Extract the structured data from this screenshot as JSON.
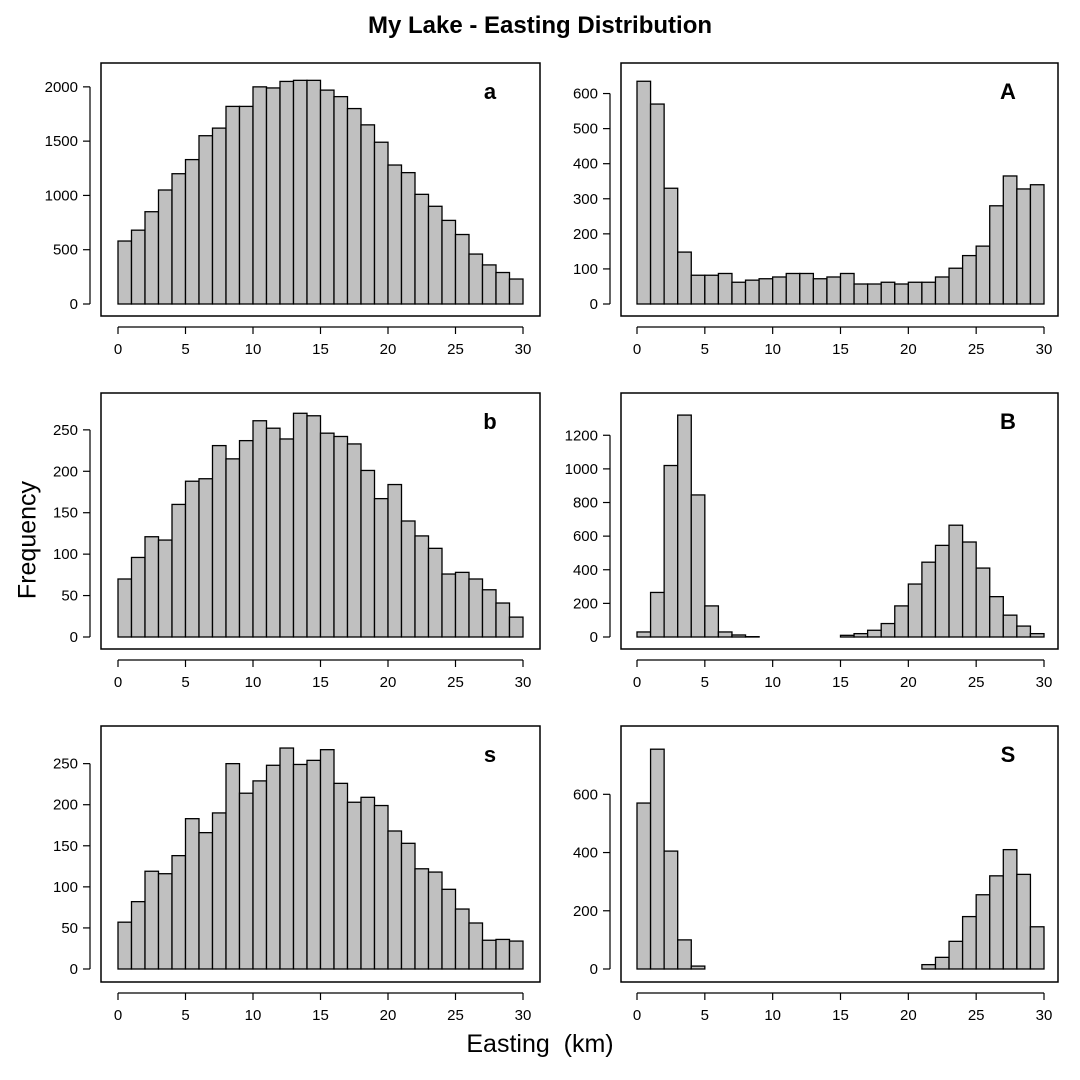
{
  "title": "My Lake - Easting Distribution",
  "xlabel": "Easting  (km)",
  "ylabel": "Frequency",
  "colors": {
    "bar_fill": "#c0c0c0",
    "bar_stroke": "#000000",
    "frame": "#000000"
  },
  "chart_data": [
    {
      "type": "bar",
      "panel_label": "a",
      "x_edges_start": 0,
      "bin_width": 1,
      "xlim": [
        0,
        30
      ],
      "xticks": [
        0,
        5,
        10,
        15,
        20,
        25,
        30
      ],
      "ylim": [
        0,
        2100
      ],
      "yticks": [
        0,
        500,
        1000,
        1500,
        2000
      ],
      "values": [
        580,
        680,
        850,
        1050,
        1200,
        1330,
        1550,
        1620,
        1820,
        1820,
        2000,
        1990,
        2050,
        2060,
        2060,
        1970,
        1910,
        1800,
        1650,
        1490,
        1280,
        1210,
        1010,
        900,
        770,
        640,
        460,
        360,
        290,
        230
      ]
    },
    {
      "type": "bar",
      "panel_label": "A",
      "x_edges_start": 0,
      "bin_width": 1,
      "xlim": [
        0,
        30
      ],
      "xticks": [
        0,
        5,
        10,
        15,
        20,
        25,
        30
      ],
      "ylim": [
        0,
        650
      ],
      "yticks": [
        0,
        100,
        200,
        300,
        400,
        500,
        600
      ],
      "values": [
        635,
        570,
        330,
        148,
        82,
        82,
        87,
        62,
        68,
        72,
        77,
        87,
        87,
        72,
        77,
        87,
        57,
        57,
        62,
        57,
        62,
        62,
        77,
        102,
        138,
        165,
        280,
        365,
        328,
        340
      ]
    },
    {
      "type": "bar",
      "panel_label": "b",
      "x_edges_start": 0,
      "bin_width": 1,
      "xlim": [
        0,
        30
      ],
      "xticks": [
        0,
        5,
        10,
        15,
        20,
        25,
        30
      ],
      "ylim": [
        0,
        280
      ],
      "yticks": [
        0,
        50,
        100,
        150,
        200,
        250
      ],
      "values": [
        70,
        96,
        121,
        117,
        160,
        188,
        191,
        231,
        215,
        237,
        261,
        252,
        239,
        270,
        267,
        246,
        242,
        233,
        201,
        167,
        184,
        140,
        122,
        107,
        76,
        78,
        70,
        57,
        41,
        24
      ]
    },
    {
      "type": "bar",
      "panel_label": "B",
      "x_edges_start": 0,
      "bin_width": 1,
      "xlim": [
        0,
        30
      ],
      "xticks": [
        0,
        5,
        10,
        15,
        20,
        25,
        30
      ],
      "ylim": [
        0,
        1380
      ],
      "yticks": [
        0,
        200,
        400,
        600,
        800,
        1000,
        1200
      ],
      "values": [
        30,
        265,
        1020,
        1320,
        845,
        185,
        30,
        12,
        2,
        0,
        0,
        0,
        0,
        0,
        0,
        10,
        20,
        40,
        80,
        185,
        315,
        445,
        545,
        665,
        565,
        410,
        240,
        130,
        65,
        20
      ]
    },
    {
      "type": "bar",
      "panel_label": "s",
      "x_edges_start": 0,
      "bin_width": 1,
      "xlim": [
        0,
        30
      ],
      "xticks": [
        0,
        5,
        10,
        15,
        20,
        25,
        30
      ],
      "ylim": [
        0,
        280
      ],
      "yticks": [
        0,
        50,
        100,
        150,
        200,
        250
      ],
      "values": [
        57,
        82,
        119,
        116,
        138,
        183,
        166,
        190,
        250,
        214,
        229,
        248,
        269,
        249,
        254,
        267,
        226,
        203,
        209,
        199,
        168,
        153,
        122,
        118,
        97,
        73,
        56,
        35,
        36,
        34
      ]
    },
    {
      "type": "bar",
      "panel_label": "S",
      "x_edges_start": 0,
      "bin_width": 1,
      "xlim": [
        0,
        30
      ],
      "xticks": [
        0,
        5,
        10,
        15,
        20,
        25,
        30
      ],
      "ylim": [
        0,
        790
      ],
      "yticks": [
        0,
        200,
        400,
        600
      ],
      "values": [
        570,
        755,
        405,
        100,
        10,
        0,
        0,
        0,
        0,
        0,
        0,
        0,
        0,
        0,
        0,
        0,
        0,
        0,
        0,
        0,
        0,
        15,
        40,
        95,
        180,
        255,
        320,
        410,
        325,
        145
      ]
    }
  ]
}
